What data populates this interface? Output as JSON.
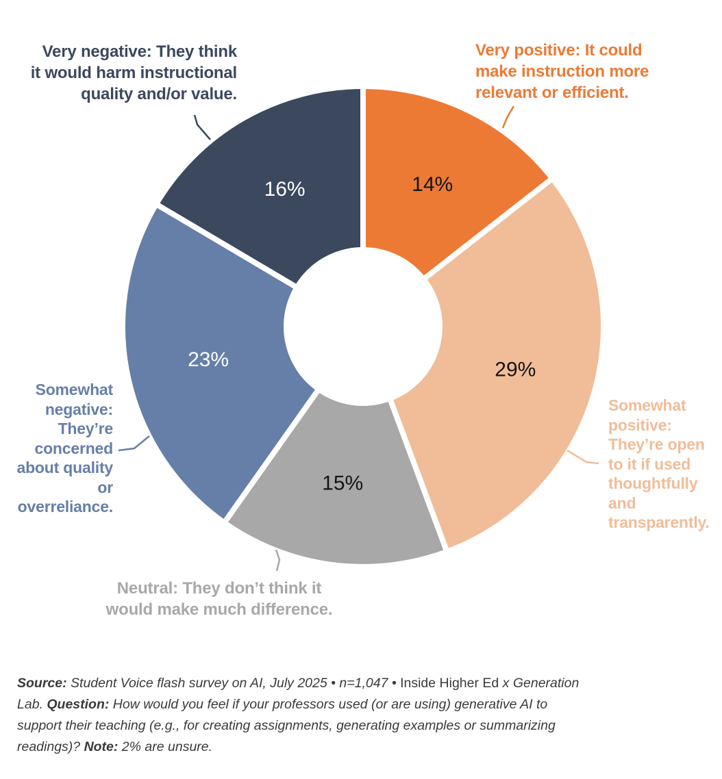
{
  "chart_data": {
    "type": "pie",
    "variant": "donut",
    "title": "",
    "start_angle_deg": 0,
    "direction": "clockwise",
    "values_sum_shown_pct": 97,
    "gap_color": "#ffffff",
    "segments": [
      {
        "name": "very-positive",
        "value": 14,
        "value_label": "14%",
        "color": "#EC7A35",
        "value_text_color": "#141414",
        "label_lines": [
          "Very positive: It could",
          "make instruction more",
          "relevant or efficient."
        ]
      },
      {
        "name": "somewhat-positive",
        "value": 29,
        "value_label": "29%",
        "color": "#F0BD98",
        "value_text_color": "#141414",
        "label_lines": [
          "Somewhat",
          "positive:",
          "They’re open",
          "to it if used",
          "thoughtfully",
          "and",
          "transparently."
        ]
      },
      {
        "name": "neutral",
        "value": 15,
        "value_label": "15%",
        "color": "#A8A8A8",
        "value_text_color": "#141414",
        "label_lines": [
          "Neutral: They don’t think it",
          "would make much difference."
        ]
      },
      {
        "name": "somewhat-negative",
        "value": 23,
        "value_label": "23%",
        "color": "#667FA8",
        "value_text_color": "#ffffff",
        "label_lines": [
          "Somewhat",
          "negative:",
          "They’re",
          "concerned",
          "about quality",
          "or",
          "overreliance."
        ]
      },
      {
        "name": "very-negative",
        "value": 16,
        "value_label": "16%",
        "color": "#3B485E",
        "value_text_color": "#ffffff",
        "label_lines": [
          "Very negative: They think",
          "it would harm instructional",
          "quality and/or value."
        ]
      }
    ]
  },
  "footnote": {
    "parts": [
      {
        "text": "Source:",
        "bold": true
      },
      {
        "text": " Student Voice flash survey on AI, July 2025 • n=1,047 • "
      },
      {
        "text": "Inside Higher Ed",
        "upright": true
      },
      {
        "text": " x Generation"
      },
      {
        "br": true
      },
      {
        "text": "Lab. "
      },
      {
        "text": "Question:",
        "bold": true
      },
      {
        "text": " How would you feel if your professors used (or are using) generative AI to"
      },
      {
        "br": true
      },
      {
        "text": "support their teaching (e.g., for creating assignments, generating examples or summarizing"
      },
      {
        "br": true
      },
      {
        "text": "readings)? "
      },
      {
        "text": "Note:",
        "bold": true
      },
      {
        "text": " 2% are unsure."
      }
    ]
  }
}
